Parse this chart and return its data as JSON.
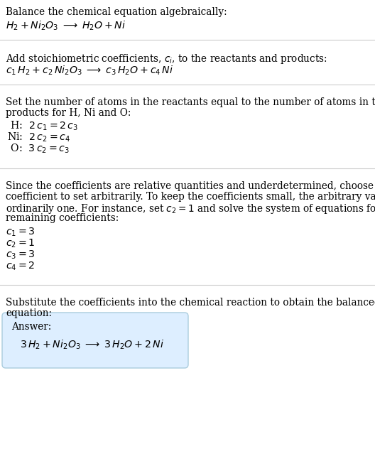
{
  "bg_color": "#ffffff",
  "text_color": "#000000",
  "line_color": "#cccccc",
  "answer_box_color": "#ddeeff",
  "answer_box_edge": "#aaccdd",
  "fs_text": 9.8,
  "fs_math": 10.2,
  "sections": {
    "s1_title": "Balance the chemical equation algebraically:",
    "s1_eq": "$H_2 + Ni_2O_3 \\;\\longrightarrow\\; H_2O + Ni$",
    "s2_title_a": "Add stoichiometric coefficients, $c_i$, to the reactants and products:",
    "s2_eq": "$c_1\\, H_2 + c_2\\, Ni_2O_3 \\;\\longrightarrow\\; c_3\\, H_2O + c_4\\, Ni$",
    "s3_title_a": "Set the number of atoms in the reactants equal to the number of atoms in the",
    "s3_title_b": "products for H, Ni and O:",
    "s3_eqs": [
      " H:  $2\\,c_1 = 2\\,c_3$",
      "Ni:  $2\\,c_2 = c_4$",
      " O:  $3\\,c_2 = c_3$"
    ],
    "s4_title_a": "Since the coefficients are relative quantities and underdetermined, choose a",
    "s4_title_b": "coefficient to set arbitrarily. To keep the coefficients small, the arbitrary value is",
    "s4_title_c": "ordinarily one. For instance, set $c_2 = 1$ and solve the system of equations for the",
    "s4_title_d": "remaining coefficients:",
    "s4_eqs": [
      "$c_1 = 3$",
      "$c_2 = 1$",
      "$c_3 = 3$",
      "$c_4 = 2$"
    ],
    "s5_title_a": "Substitute the coefficients into the chemical reaction to obtain the balanced",
    "s5_title_b": "equation:",
    "answer_label": "Answer:",
    "answer_eq": "$3\\,H_2 + Ni_2O_3 \\;\\longrightarrow\\; 3\\,H_2O + 2\\, Ni$"
  }
}
